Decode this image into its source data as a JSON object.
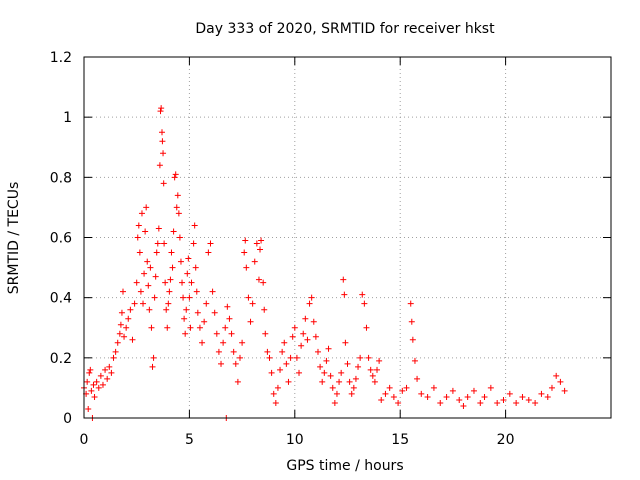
{
  "chart_data": {
    "type": "scatter",
    "title": "Day 333 of 2020, SRMTID for receiver hkst",
    "xlabel": "GPS time / hours",
    "ylabel": "SRMTID / TECUs",
    "xlim": [
      0,
      25
    ],
    "ylim": [
      0,
      1.2
    ],
    "x_ticks": [
      0,
      5,
      10,
      15,
      20
    ],
    "x_tick_labels": [
      "0",
      "5",
      "10",
      "15",
      "20"
    ],
    "y_ticks": [
      0,
      0.2,
      0.4,
      0.6,
      0.8,
      1,
      1.2
    ],
    "y_tick_labels": [
      "0",
      "0.2",
      "0.4",
      "0.6",
      "0.8",
      "1",
      "1.2"
    ],
    "grid": true,
    "marker": "+",
    "series_color": "#ff0000",
    "series": [
      {
        "name": "SRMTID",
        "points": [
          [
            0.0,
            0.1
          ],
          [
            0.1,
            0.08
          ],
          [
            0.15,
            0.12
          ],
          [
            0.2,
            0.03
          ],
          [
            0.25,
            0.15
          ],
          [
            0.3,
            0.16
          ],
          [
            0.35,
            0.09
          ],
          [
            0.4,
            0.0
          ],
          [
            0.45,
            0.11
          ],
          [
            0.5,
            0.07
          ],
          [
            0.6,
            0.12
          ],
          [
            0.7,
            0.1
          ],
          [
            0.8,
            0.14
          ],
          [
            0.9,
            0.11
          ],
          [
            1.0,
            0.16
          ],
          [
            1.1,
            0.13
          ],
          [
            1.2,
            0.17
          ],
          [
            1.3,
            0.15
          ],
          [
            1.4,
            0.2
          ],
          [
            1.5,
            0.22
          ],
          [
            1.6,
            0.25
          ],
          [
            1.7,
            0.28
          ],
          [
            1.75,
            0.31
          ],
          [
            1.8,
            0.35
          ],
          [
            1.85,
            0.42
          ],
          [
            1.9,
            0.27
          ],
          [
            2.0,
            0.3
          ],
          [
            2.1,
            0.33
          ],
          [
            2.2,
            0.36
          ],
          [
            2.3,
            0.26
          ],
          [
            2.4,
            0.38
          ],
          [
            2.5,
            0.45
          ],
          [
            2.55,
            0.6
          ],
          [
            2.6,
            0.64
          ],
          [
            2.65,
            0.55
          ],
          [
            2.7,
            0.42
          ],
          [
            2.75,
            0.68
          ],
          [
            2.8,
            0.38
          ],
          [
            2.85,
            0.48
          ],
          [
            2.9,
            0.62
          ],
          [
            2.95,
            0.7
          ],
          [
            3.0,
            0.52
          ],
          [
            3.05,
            0.44
          ],
          [
            3.1,
            0.36
          ],
          [
            3.15,
            0.5
          ],
          [
            3.2,
            0.3
          ],
          [
            3.25,
            0.17
          ],
          [
            3.3,
            0.2
          ],
          [
            3.35,
            0.4
          ],
          [
            3.4,
            0.47
          ],
          [
            3.45,
            0.55
          ],
          [
            3.5,
            0.58
          ],
          [
            3.55,
            0.63
          ],
          [
            3.6,
            0.84
          ],
          [
            3.63,
            1.02
          ],
          [
            3.66,
            1.03
          ],
          [
            3.7,
            0.95
          ],
          [
            3.72,
            0.92
          ],
          [
            3.75,
            0.88
          ],
          [
            3.78,
            0.78
          ],
          [
            3.8,
            0.58
          ],
          [
            3.85,
            0.45
          ],
          [
            3.9,
            0.36
          ],
          [
            3.95,
            0.3
          ],
          [
            4.0,
            0.38
          ],
          [
            4.05,
            0.42
          ],
          [
            4.1,
            0.46
          ],
          [
            4.15,
            0.55
          ],
          [
            4.2,
            0.5
          ],
          [
            4.25,
            0.62
          ],
          [
            4.3,
            0.8
          ],
          [
            4.35,
            0.81
          ],
          [
            4.4,
            0.7
          ],
          [
            4.45,
            0.74
          ],
          [
            4.5,
            0.68
          ],
          [
            4.55,
            0.6
          ],
          [
            4.6,
            0.52
          ],
          [
            4.65,
            0.45
          ],
          [
            4.7,
            0.4
          ],
          [
            4.75,
            0.33
          ],
          [
            4.8,
            0.28
          ],
          [
            4.85,
            0.36
          ],
          [
            4.9,
            0.48
          ],
          [
            4.95,
            0.53
          ],
          [
            5.0,
            0.4
          ],
          [
            5.05,
            0.3
          ],
          [
            5.1,
            0.45
          ],
          [
            5.2,
            0.58
          ],
          [
            5.25,
            0.64
          ],
          [
            5.3,
            0.5
          ],
          [
            5.35,
            0.42
          ],
          [
            5.4,
            0.35
          ],
          [
            5.5,
            0.3
          ],
          [
            5.6,
            0.25
          ],
          [
            5.7,
            0.32
          ],
          [
            5.8,
            0.38
          ],
          [
            5.9,
            0.55
          ],
          [
            6.0,
            0.58
          ],
          [
            6.1,
            0.42
          ],
          [
            6.2,
            0.35
          ],
          [
            6.3,
            0.28
          ],
          [
            6.4,
            0.22
          ],
          [
            6.5,
            0.18
          ],
          [
            6.6,
            0.25
          ],
          [
            6.7,
            0.3
          ],
          [
            6.75,
            0.0
          ],
          [
            6.8,
            0.37
          ],
          [
            6.9,
            0.33
          ],
          [
            7.0,
            0.28
          ],
          [
            7.1,
            0.22
          ],
          [
            7.2,
            0.18
          ],
          [
            7.3,
            0.12
          ],
          [
            7.4,
            0.2
          ],
          [
            7.5,
            0.25
          ],
          [
            7.6,
            0.55
          ],
          [
            7.65,
            0.59
          ],
          [
            7.7,
            0.5
          ],
          [
            7.8,
            0.4
          ],
          [
            7.9,
            0.32
          ],
          [
            8.0,
            0.38
          ],
          [
            8.1,
            0.52
          ],
          [
            8.2,
            0.58
          ],
          [
            8.3,
            0.46
          ],
          [
            8.35,
            0.56
          ],
          [
            8.4,
            0.59
          ],
          [
            8.5,
            0.45
          ],
          [
            8.55,
            0.36
          ],
          [
            8.6,
            0.28
          ],
          [
            8.7,
            0.22
          ],
          [
            8.8,
            0.2
          ],
          [
            8.9,
            0.15
          ],
          [
            9.0,
            0.08
          ],
          [
            9.1,
            0.05
          ],
          [
            9.2,
            0.1
          ],
          [
            9.3,
            0.16
          ],
          [
            9.4,
            0.22
          ],
          [
            9.5,
            0.25
          ],
          [
            9.6,
            0.18
          ],
          [
            9.7,
            0.12
          ],
          [
            9.8,
            0.2
          ],
          [
            9.9,
            0.27
          ],
          [
            10.0,
            0.3
          ],
          [
            10.1,
            0.2
          ],
          [
            10.2,
            0.15
          ],
          [
            10.3,
            0.24
          ],
          [
            10.4,
            0.28
          ],
          [
            10.5,
            0.33
          ],
          [
            10.6,
            0.26
          ],
          [
            10.7,
            0.38
          ],
          [
            10.8,
            0.4
          ],
          [
            10.9,
            0.32
          ],
          [
            11.0,
            0.27
          ],
          [
            11.1,
            0.22
          ],
          [
            11.2,
            0.17
          ],
          [
            11.3,
            0.12
          ],
          [
            11.4,
            0.15
          ],
          [
            11.5,
            0.19
          ],
          [
            11.6,
            0.23
          ],
          [
            11.7,
            0.14
          ],
          [
            11.8,
            0.1
          ],
          [
            11.9,
            0.05
          ],
          [
            12.0,
            0.08
          ],
          [
            12.1,
            0.12
          ],
          [
            12.2,
            0.15
          ],
          [
            12.3,
            0.46
          ],
          [
            12.35,
            0.41
          ],
          [
            12.4,
            0.25
          ],
          [
            12.5,
            0.18
          ],
          [
            12.6,
            0.12
          ],
          [
            12.7,
            0.08
          ],
          [
            12.8,
            0.1
          ],
          [
            12.9,
            0.13
          ],
          [
            13.0,
            0.17
          ],
          [
            13.1,
            0.2
          ],
          [
            13.2,
            0.41
          ],
          [
            13.3,
            0.38
          ],
          [
            13.4,
            0.3
          ],
          [
            13.5,
            0.2
          ],
          [
            13.6,
            0.16
          ],
          [
            13.7,
            0.14
          ],
          [
            13.8,
            0.12
          ],
          [
            13.9,
            0.16
          ],
          [
            14.0,
            0.19
          ],
          [
            14.1,
            0.06
          ],
          [
            14.3,
            0.08
          ],
          [
            14.5,
            0.1
          ],
          [
            14.7,
            0.07
          ],
          [
            14.9,
            0.05
          ],
          [
            15.1,
            0.09
          ],
          [
            15.3,
            0.1
          ],
          [
            15.5,
            0.38
          ],
          [
            15.55,
            0.32
          ],
          [
            15.6,
            0.26
          ],
          [
            15.7,
            0.19
          ],
          [
            15.8,
            0.13
          ],
          [
            16.0,
            0.08
          ],
          [
            16.3,
            0.07
          ],
          [
            16.6,
            0.1
          ],
          [
            16.9,
            0.05
          ],
          [
            17.2,
            0.07
          ],
          [
            17.5,
            0.09
          ],
          [
            17.8,
            0.06
          ],
          [
            18.0,
            0.04
          ],
          [
            18.2,
            0.07
          ],
          [
            18.5,
            0.09
          ],
          [
            18.8,
            0.05
          ],
          [
            19.0,
            0.07
          ],
          [
            19.3,
            0.1
          ],
          [
            19.6,
            0.05
          ],
          [
            19.9,
            0.06
          ],
          [
            20.2,
            0.08
          ],
          [
            20.5,
            0.05
          ],
          [
            20.8,
            0.07
          ],
          [
            21.1,
            0.06
          ],
          [
            21.4,
            0.05
          ],
          [
            21.7,
            0.08
          ],
          [
            22.0,
            0.07
          ],
          [
            22.2,
            0.1
          ],
          [
            22.4,
            0.14
          ],
          [
            22.6,
            0.12
          ],
          [
            22.8,
            0.09
          ]
        ]
      }
    ]
  }
}
